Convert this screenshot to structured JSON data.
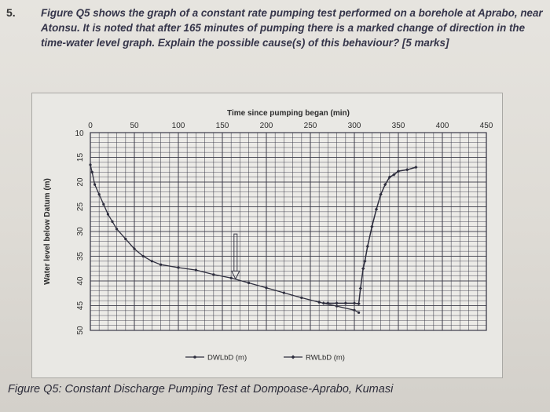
{
  "question": {
    "number": "5.",
    "text": "Figure Q5 shows the graph of a constant rate pumping test performed on a borehole at Aprabo, near Atonsu. It is noted that after 165 minutes of pumping there is a marked change of direction in the time-water level graph. Explain the possible cause(s) of this behaviour? [5 marks]"
  },
  "caption": "Figure Q5: Constant Discharge Pumping Test at Dompoase-Aprabo, Kumasi",
  "colors": {
    "grid": "#3a3a48",
    "line": "#2e2e3e",
    "arrow": "#3a3a48"
  },
  "chart_data": {
    "type": "line",
    "title": "Time since pumping began (min)",
    "xlabel": "Time since pumping began (min)",
    "ylabel": "Water level below Datum (m)",
    "x_ticks": [
      "0",
      "50",
      "100",
      "150",
      "200",
      "250",
      "300",
      "350",
      "400",
      "450"
    ],
    "y_ticks": [
      "10",
      "15",
      "20",
      "25",
      "30",
      "35",
      "40",
      "45",
      "50"
    ],
    "xlim": [
      0,
      450
    ],
    "ylim": [
      10,
      50
    ],
    "y_inverted": true,
    "annotation_x": 165,
    "series": [
      {
        "name": "DWLbD (m)",
        "marker": "dot",
        "x": [
          0,
          2,
          5,
          10,
          15,
          20,
          25,
          30,
          40,
          50,
          60,
          70,
          80,
          100,
          120,
          140,
          160,
          180,
          200,
          220,
          240,
          260,
          280,
          300,
          305
        ],
        "y": [
          16.5,
          18,
          20.5,
          22.5,
          24.5,
          26.5,
          28,
          29.5,
          31.5,
          33.5,
          35,
          36,
          36.7,
          37.3,
          37.8,
          38.7,
          39.4,
          40.4,
          41.4,
          42.4,
          43.4,
          44.3,
          45.1,
          45.9,
          46.4
        ]
      },
      {
        "name": "RWLbD (m)",
        "marker": "diamond",
        "x": [
          265,
          270,
          280,
          290,
          300,
          305,
          307,
          310,
          312,
          315,
          320,
          325,
          330,
          335,
          340,
          345,
          350,
          360,
          370
        ],
        "y": [
          44.5,
          44.5,
          44.5,
          44.5,
          44.5,
          44.6,
          41.5,
          37.5,
          36,
          33,
          29,
          25.5,
          22.5,
          20.5,
          19,
          18.5,
          17.8,
          17.5,
          17
        ]
      }
    ]
  }
}
